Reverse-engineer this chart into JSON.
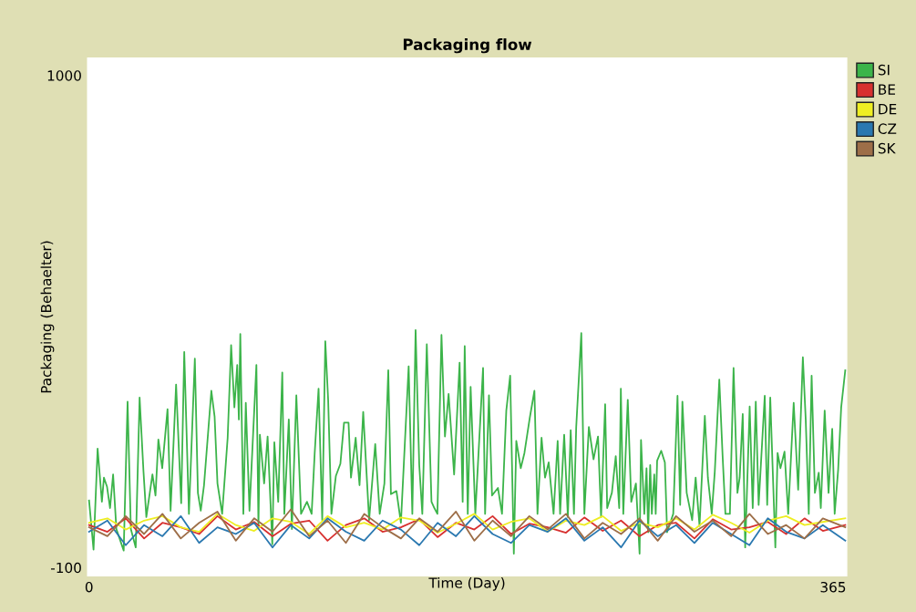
{
  "chart_data": {
    "type": "line",
    "title": "Packaging flow",
    "xlabel": "Time (Day)",
    "ylabel": "Packaging (Behaelter)",
    "xlim": [
      -1,
      372
    ],
    "xticks": [
      0,
      365
    ],
    "ylim": [
      -120,
      1040
    ],
    "yticks": [
      -100,
      1000
    ],
    "grid": false,
    "legend": "top right",
    "x": [
      0,
      9,
      18,
      27,
      36,
      45,
      54,
      63,
      72,
      81,
      90,
      99,
      108,
      117,
      126,
      135,
      144,
      153,
      162,
      171,
      180,
      189,
      198,
      207,
      216,
      225,
      234,
      243,
      252,
      261,
      270,
      279,
      288,
      297,
      306,
      315,
      324,
      333,
      342,
      351,
      360,
      371
    ],
    "series": [
      {
        "name": "SI",
        "color": "#3cb44a",
        "x": [
          0,
          2.2,
          4.2,
          6.3,
          7.3,
          8.8,
          10.3,
          11.8,
          13.4,
          17.0,
          18.9,
          20.5,
          22.9,
          24.8,
          26.7,
          28.1,
          31.1,
          32.6,
          34.0,
          35.9,
          38.5,
          40.0,
          42.7,
          45.2,
          46.7,
          49.0,
          51.9,
          53.4,
          54.8,
          56.4,
          60.0,
          61.6,
          63.0,
          65.3,
          68.0,
          69.7,
          71.3,
          72.7,
          73.5,
          74.2,
          75.7,
          76.9,
          78.7,
          82.1,
          83.1,
          83.8,
          85.9,
          87.6,
          89.9,
          90.9,
          92.8,
          94.8,
          95.8,
          98.0,
          99.5,
          101.7,
          104.0,
          106.9,
          109.2,
          110.7,
          112.6,
          114.4,
          115.9,
          117.3,
          118.9,
          121.1,
          123.3,
          125.1,
          127.3,
          128.5,
          130.8,
          132.7,
          134.5,
          137.4,
          140.4,
          142.6,
          144.9,
          146.8,
          148.1,
          150.8,
          153.0,
          156.8,
          158.6,
          160.2,
          162.0,
          163.5,
          165.7,
          168.0,
          169.4,
          170.9,
          172.9,
          174.6,
          176.4,
          179.1,
          181.8,
          183.3,
          184.3,
          185.8,
          187.2,
          189.5,
          193.3,
          194.3,
          196.2,
          197.7,
          200.6,
          202.6,
          204.7,
          206.6,
          208.4,
          209.6,
          211.8,
          213.6,
          216.2,
          218.5,
          220.0,
          222.0,
          223.7,
          225.5,
          227.9,
          229.9,
          231.1,
          233.1,
          234.9,
          236.3,
          237.9,
          239.0,
          241.5,
          243.0,
          245.2,
          247.5,
          249.7,
          251.2,
          253.2,
          254.2,
          256.5,
          258.4,
          260.1,
          260.9,
          262.1,
          264.3,
          266.0,
          268.3,
          270.1,
          270.8,
          272.4,
          273.5,
          274.3,
          275.3,
          276.1,
          277.3,
          278.0,
          278.7,
          280.7,
          282.5,
          283.6,
          286.6,
          288.7,
          290.0,
          291.1,
          293.2,
          295.9,
          297.6,
          299.5,
          302.1,
          303.6,
          305.5,
          307.0,
          309.2,
          310.8,
          312.2,
          314.4,
          316.2,
          318.1,
          319.2,
          320.7,
          321.9,
          324.1,
          325.6,
          327.1,
          328.5,
          331.5,
          332.7,
          334.2,
          336.7,
          337.8,
          339.2,
          341.2,
          343.0,
          345.7,
          347.9,
          350.2,
          351.6,
          353.1,
          354.5,
          356.1,
          358.0,
          359.0,
          360.9,
          362.8,
          364.6,
          365.8,
          367.5,
          369.0,
          371.0
        ],
        "values": [
          50,
          -60,
          166,
          47,
          101,
          81,
          33,
          108,
          -14,
          -62,
          271,
          -14,
          -55,
          280,
          115,
          13,
          108,
          61,
          186,
          122,
          254,
          27,
          309,
          44,
          382,
          20,
          367,
          67,
          27,
          84,
          295,
          237,
          88,
          20,
          190,
          397,
          258,
          353,
          231,
          422,
          20,
          268,
          27,
          353,
          -7,
          197,
          88,
          193,
          -48,
          180,
          47,
          336,
          20,
          231,
          -14,
          285,
          20,
          47,
          20,
          156,
          300,
          6,
          406,
          275,
          20,
          105,
          132,
          224,
          224,
          101,
          190,
          84,
          248,
          6,
          176,
          20,
          88,
          341,
          64,
          71,
          0,
          350,
          20,
          431,
          129,
          20,
          399,
          47,
          33,
          20,
          420,
          193,
          288,
          108,
          358,
          47,
          395,
          20,
          304,
          20,
          346,
          20,
          285,
          61,
          78,
          20,
          251,
          329,
          -69,
          183,
          122,
          156,
          234,
          295,
          20,
          190,
          101,
          135,
          20,
          183,
          20,
          197,
          13,
          207,
          20,
          214,
          424,
          20,
          214,
          142,
          193,
          13,
          265,
          33,
          67,
          149,
          33,
          300,
          20,
          275,
          47,
          88,
          -69,
          185,
          20,
          122,
          -21,
          129,
          20,
          108,
          20,
          139,
          161,
          135,
          -21,
          20,
          284,
          40,
          271,
          67,
          6,
          101,
          -7,
          239,
          101,
          20,
          115,
          320,
          152,
          20,
          20,
          346,
          67,
          101,
          243,
          -55,
          260,
          33,
          271,
          40,
          284,
          40,
          280,
          -55,
          156,
          122,
          159,
          20,
          268,
          74,
          370,
          231,
          20,
          329,
          67,
          112,
          33,
          251,
          67,
          210,
          20,
          118,
          258,
          341
        ]
      },
      {
        "name": "BE",
        "color": "#d7302f",
        "values": [
          -5,
          -20,
          10,
          -35,
          0,
          -10,
          -25,
          15,
          -15,
          2,
          -30,
          -2,
          5,
          -40,
          -5,
          10,
          -20,
          -10,
          8,
          -32,
          0,
          -15,
          15,
          -25,
          -2,
          -10,
          -22,
          12,
          -18,
          5,
          -30,
          -5,
          0,
          -35,
          8,
          -15,
          -10,
          2,
          -25,
          10,
          -18,
          -5
        ]
      },
      {
        "name": "DE",
        "color": "#eeee22",
        "values": [
          0,
          10,
          -15,
          5,
          15,
          -10,
          -20,
          20,
          -5,
          -18,
          10,
          2,
          -25,
          15,
          -10,
          0,
          -15,
          12,
          5,
          -22,
          -2,
          20,
          -15,
          2,
          10,
          -20,
          5,
          -5,
          15,
          -18,
          0,
          -10,
          10,
          -15,
          18,
          0,
          -22,
          5,
          15,
          -5,
          2,
          10
        ]
      },
      {
        "name": "CZ",
        "color": "#2a78b0",
        "values": [
          -20,
          5,
          -50,
          -5,
          -30,
          15,
          -45,
          -10,
          -25,
          0,
          -55,
          -5,
          -35,
          10,
          -20,
          -40,
          5,
          -15,
          -50,
          0,
          -30,
          15,
          -25,
          -45,
          -5,
          -20,
          10,
          -40,
          -10,
          -55,
          5,
          -30,
          -5,
          -45,
          0,
          -25,
          -50,
          10,
          -20,
          -35,
          -5,
          -40
        ]
      },
      {
        "name": "SK",
        "color": "#9d6e48",
        "values": [
          -10,
          -30,
          15,
          -25,
          20,
          -35,
          0,
          25,
          -40,
          10,
          -20,
          30,
          -30,
          5,
          -45,
          20,
          -10,
          -35,
          10,
          -20,
          25,
          -40,
          5,
          -30,
          15,
          -15,
          20,
          -35,
          0,
          -25,
          10,
          -40,
          15,
          -20,
          5,
          -30,
          20,
          -25,
          -5,
          -35,
          10,
          -10
        ]
      }
    ]
  }
}
